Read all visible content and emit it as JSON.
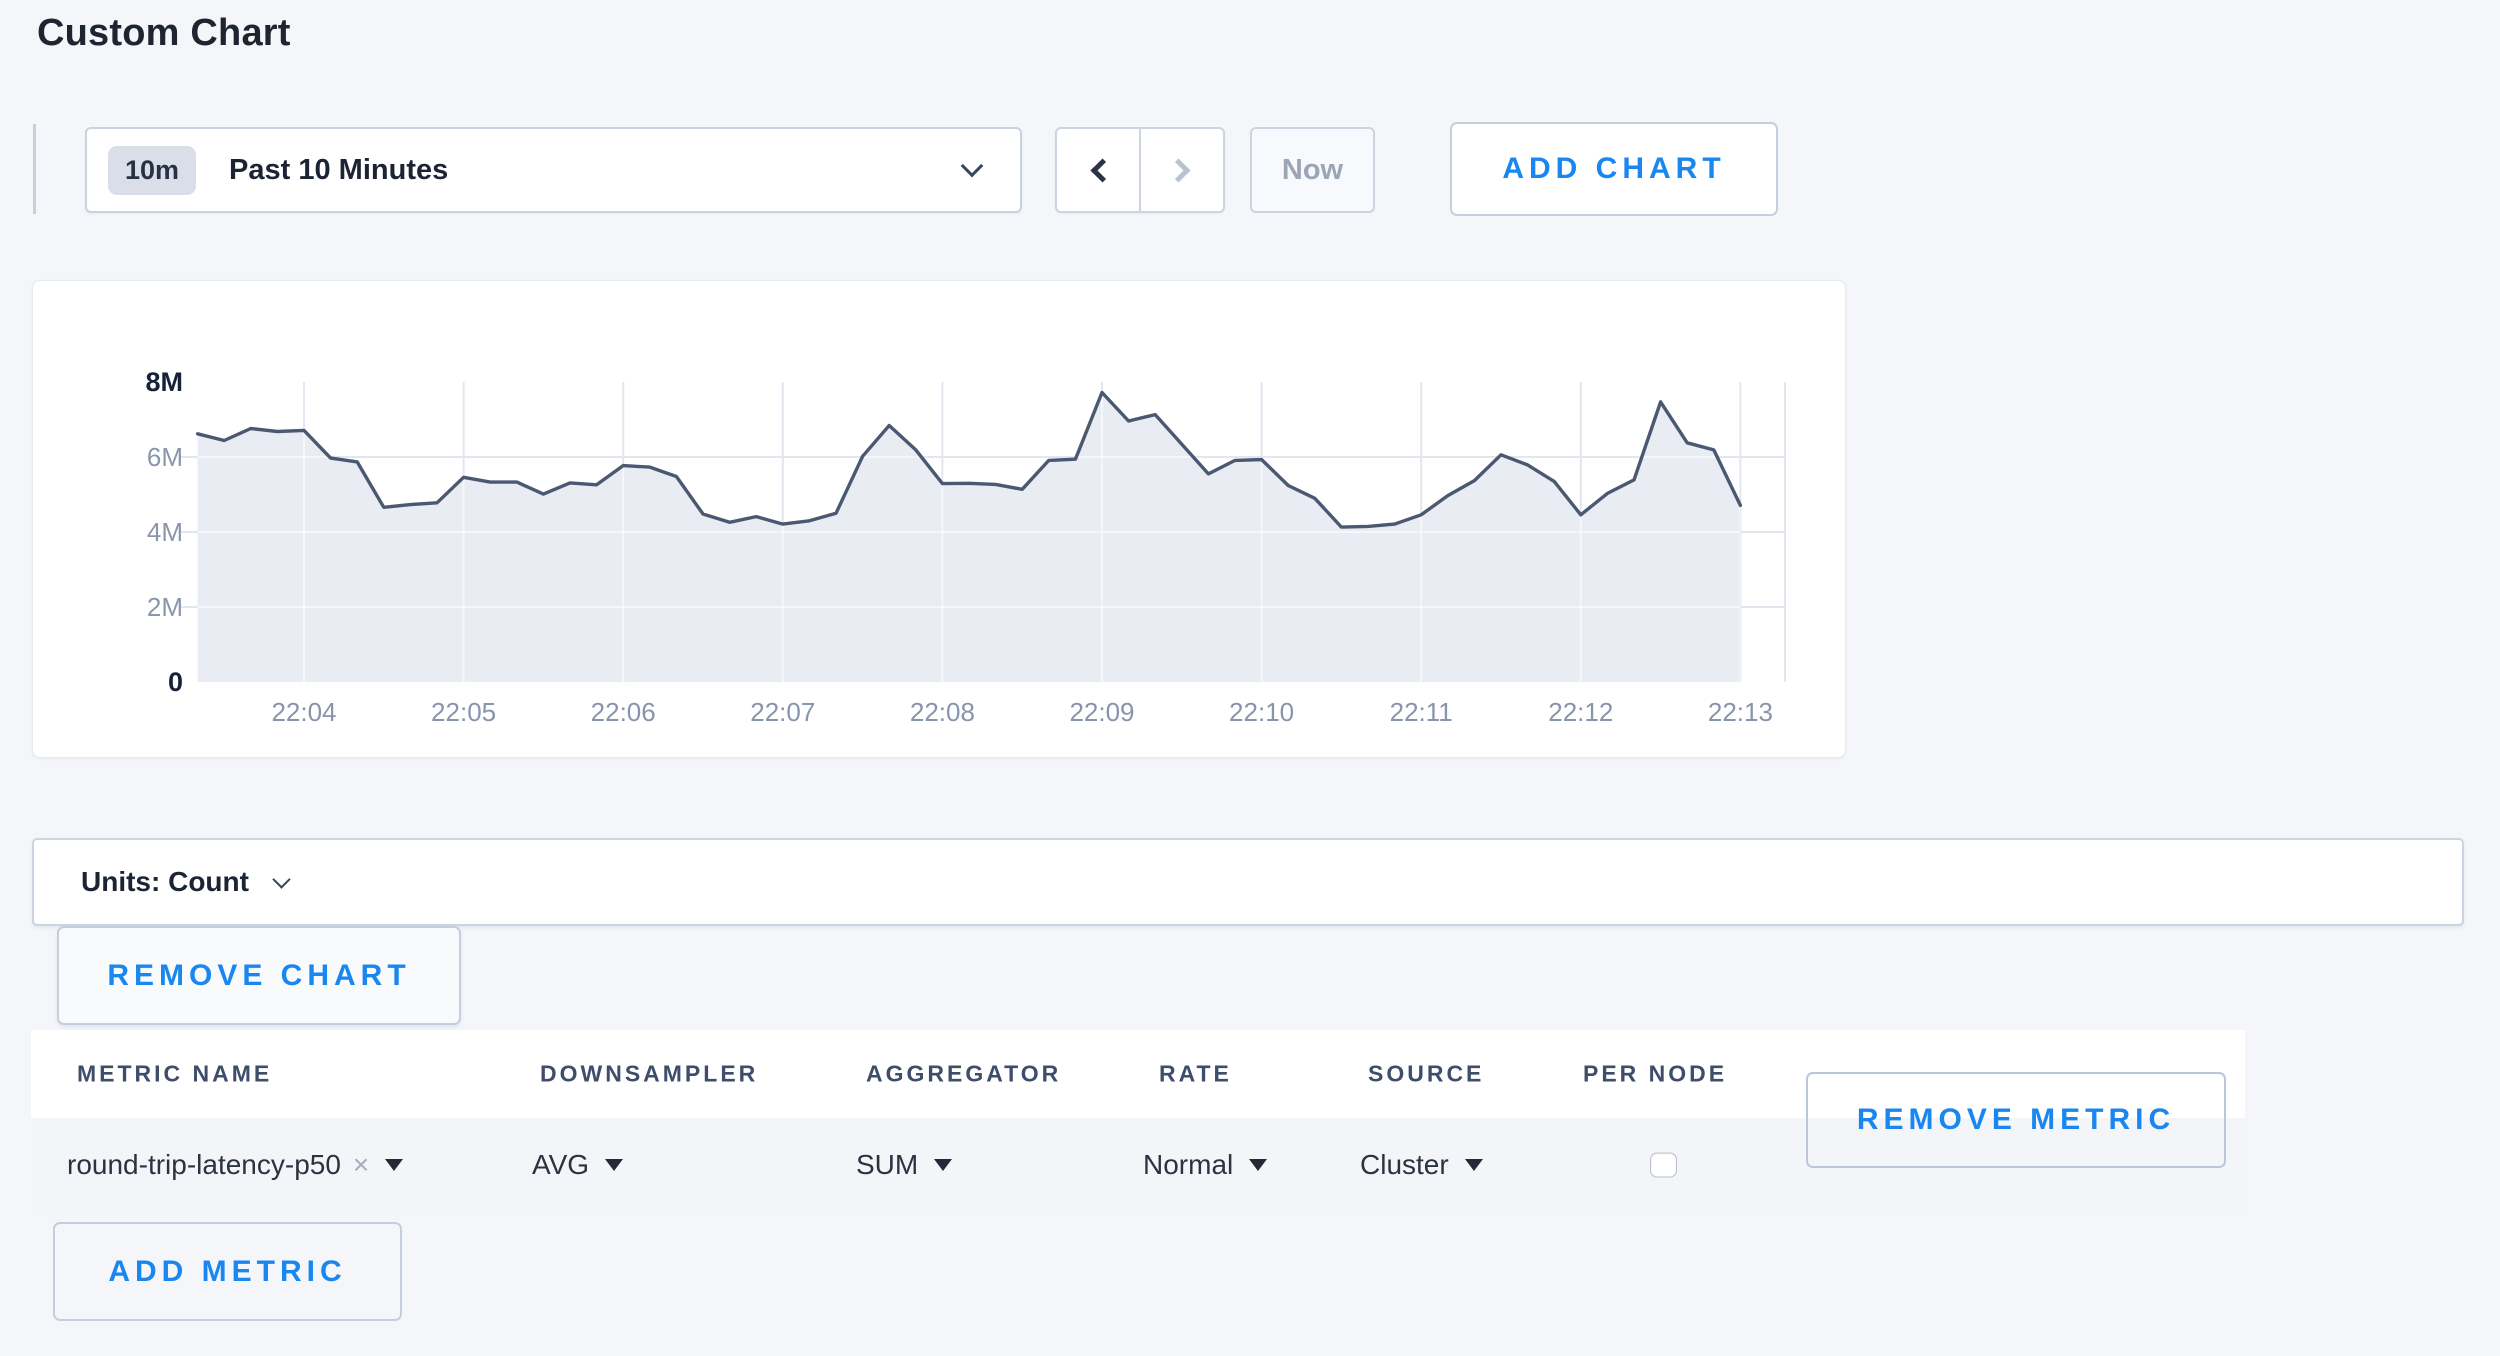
{
  "page": {
    "title": "Custom Chart"
  },
  "colors": {
    "accent_blue": "#1a87f0",
    "page_background": "#f4f6fa",
    "chart_line": "#4b5871",
    "chart_fill": "#e8ebf1",
    "grid_line": "#e2e7ef"
  },
  "toolbar": {
    "time_range_badge": "10m",
    "time_range_label": "Past 10 Minutes",
    "prev_icon": "chevron-left",
    "next_icon": "chevron-right",
    "now_label": "Now",
    "add_chart_label": "ADD CHART"
  },
  "chart_data": {
    "type": "area",
    "title": "",
    "xlabel": "",
    "ylabel": "",
    "legend": "none",
    "grid": true,
    "ylim_millions": [
      0,
      8
    ],
    "x_ticks": [
      "22:04",
      "22:05",
      "22:06",
      "22:07",
      "22:08",
      "22:09",
      "22:10",
      "22:11",
      "22:12",
      "22:13"
    ],
    "y_ticks": [
      {
        "label": "8M",
        "value_millions": 8,
        "emphasis": true
      },
      {
        "label": "6M",
        "value_millions": 6,
        "emphasis": false
      },
      {
        "label": "4M",
        "value_millions": 4,
        "emphasis": false
      },
      {
        "label": "2M",
        "value_millions": 2,
        "emphasis": false
      },
      {
        "label": "0",
        "value_millions": 0,
        "emphasis": true
      }
    ],
    "series": [
      {
        "name": "round-trip-latency-p50",
        "unit": "Count",
        "x": [
          "22:03:20",
          "22:03:30",
          "22:03:40",
          "22:03:50",
          "22:04:00",
          "22:04:10",
          "22:04:20",
          "22:04:30",
          "22:04:40",
          "22:04:50",
          "22:05:00",
          "22:05:10",
          "22:05:20",
          "22:05:30",
          "22:05:40",
          "22:05:50",
          "22:06:00",
          "22:06:10",
          "22:06:20",
          "22:06:30",
          "22:06:40",
          "22:06:50",
          "22:07:00",
          "22:07:10",
          "22:07:20",
          "22:07:30",
          "22:07:40",
          "22:07:50",
          "22:08:00",
          "22:08:10",
          "22:08:20",
          "22:08:30",
          "22:08:40",
          "22:08:50",
          "22:09:00",
          "22:09:10",
          "22:09:20",
          "22:09:30",
          "22:09:40",
          "22:09:50",
          "22:10:00",
          "22:10:10",
          "22:10:20",
          "22:10:30",
          "22:10:40",
          "22:10:50",
          "22:11:00",
          "22:11:10",
          "22:11:20",
          "22:11:30",
          "22:11:40",
          "22:11:50",
          "22:12:00",
          "22:12:10",
          "22:12:20",
          "22:12:30",
          "22:12:40",
          "22:12:50",
          "22:13:00"
        ],
        "values_millions": [
          6.62,
          6.44,
          6.76,
          6.68,
          6.71,
          5.97,
          5.87,
          4.66,
          4.73,
          4.78,
          5.46,
          5.33,
          5.33,
          5.01,
          5.31,
          5.26,
          5.77,
          5.73,
          5.48,
          4.48,
          4.26,
          4.41,
          4.21,
          4.3,
          4.5,
          6.02,
          6.84,
          6.19,
          5.29,
          5.3,
          5.27,
          5.14,
          5.91,
          5.94,
          7.72,
          6.96,
          7.13,
          6.34,
          5.55,
          5.91,
          5.93,
          5.24,
          4.9,
          4.13,
          4.15,
          4.21,
          4.46,
          4.97,
          5.37,
          6.06,
          5.79,
          5.35,
          4.46,
          5.03,
          5.39,
          7.47,
          6.38,
          6.19,
          4.71
        ]
      }
    ]
  },
  "units_bar": {
    "label": "Units: Count"
  },
  "chart_actions": {
    "remove_chart_label": "REMOVE CHART"
  },
  "icons": {
    "close_glyph": "×"
  },
  "metrics_table": {
    "columns": [
      "METRIC NAME",
      "DOWNSAMPLER",
      "AGGREGATOR",
      "RATE",
      "SOURCE",
      "PER NODE"
    ],
    "rows": [
      {
        "metric_name": "round-trip-latency-p50",
        "downsampler": "AVG",
        "aggregator": "SUM",
        "rate": "Normal",
        "source": "Cluster",
        "per_node_checked": false,
        "remove_label": "REMOVE METRIC"
      }
    ],
    "add_metric_label": "ADD METRIC"
  }
}
